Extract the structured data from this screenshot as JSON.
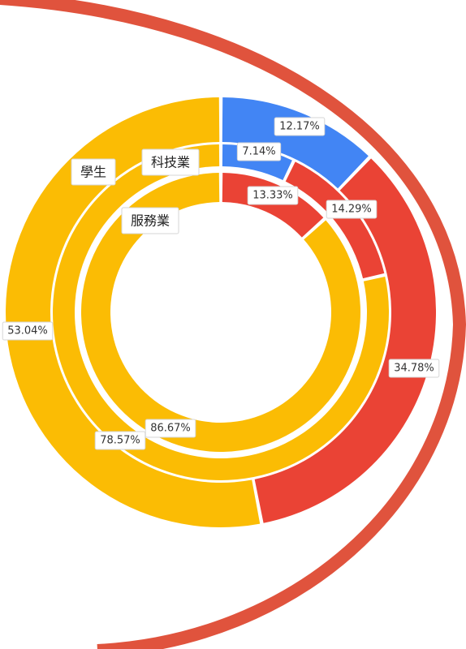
{
  "chart_data": {
    "type": "donut",
    "title": "",
    "rings": [
      {
        "name": "學生",
        "slices": [
          {
            "value": 12.17,
            "label": "12.17%",
            "color": "#4285f4"
          },
          {
            "value": 34.78,
            "label": "34.78%",
            "color": "#ea4335"
          },
          {
            "value": 53.04,
            "label": "53.04%",
            "color": "#fbbc04"
          }
        ]
      },
      {
        "name": "科技業",
        "slices": [
          {
            "value": 7.14,
            "label": "7.14%",
            "color": "#4285f4"
          },
          {
            "value": 14.29,
            "label": "14.29%",
            "color": "#ea4335"
          },
          {
            "value": 78.57,
            "label": "78.57%",
            "color": "#fbbc04"
          }
        ]
      },
      {
        "name": "服務業",
        "slices": [
          {
            "value": 13.33,
            "label": "13.33%",
            "color": "#ea4335"
          },
          {
            "value": 86.67,
            "label": "86.67%",
            "color": "#fbbc04"
          }
        ]
      }
    ]
  },
  "decoration": {
    "arc_color": "#e0533d"
  }
}
